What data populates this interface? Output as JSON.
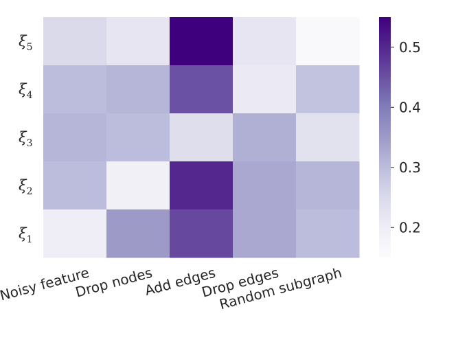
{
  "chart_data": {
    "type": "heatmap",
    "x_categories": [
      "Noisy feature",
      "Drop nodes",
      "Add edges",
      "Drop edges",
      "Random subgraph"
    ],
    "y_categories": [
      {
        "base": "ξ",
        "sub": "5"
      },
      {
        "base": "ξ",
        "sub": "4"
      },
      {
        "base": "ξ",
        "sub": "3"
      },
      {
        "base": "ξ",
        "sub": "2"
      },
      {
        "base": "ξ",
        "sub": "1"
      }
    ],
    "values": [
      [
        0.25,
        0.22,
        0.55,
        0.22,
        0.16
      ],
      [
        0.3,
        0.31,
        0.45,
        0.21,
        0.29
      ],
      [
        0.31,
        0.3,
        0.24,
        0.32,
        0.23
      ],
      [
        0.3,
        0.19,
        0.5,
        0.33,
        0.31
      ],
      [
        0.2,
        0.35,
        0.46,
        0.33,
        0.3
      ]
    ],
    "colormap": "Purples",
    "color_range": [
      0.15,
      0.55
    ],
    "colorbar_ticks": [
      "0.2",
      "0.3",
      "0.4",
      "0.5"
    ],
    "colorbar_tick_values": [
      0.2,
      0.3,
      0.4,
      0.5
    ],
    "title": "",
    "xlabel": "",
    "ylabel": "",
    "grid": false
  }
}
